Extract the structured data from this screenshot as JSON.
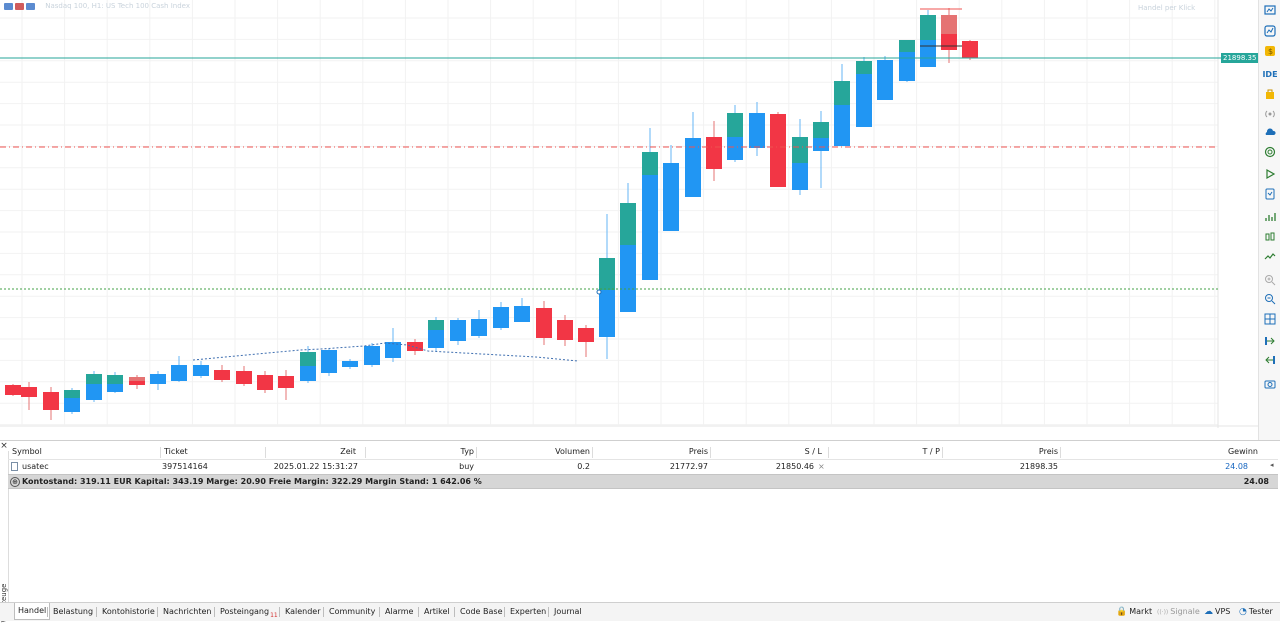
{
  "chart": {
    "header_text": "Nasdaq 100, H1: US Tech 100 Cash Index",
    "header_right": "Handel per Klick",
    "current_price_tag": "21898.35",
    "colors": {
      "bull_green": "#26a69a",
      "bull_blue": "#2196f3",
      "bear_red": "#f23645",
      "price_line": "#26a69a",
      "sl_line": "#ef5350",
      "entry_line": "#43a047"
    }
  },
  "right_toolbar": {
    "icons": [
      "market-watch-icon",
      "chart-icon",
      "coin-icon",
      "ide-icon",
      "bag-icon",
      "signal-icon",
      "cloud-icon",
      "globe-icon",
      "play-icon",
      "tester-icon",
      "algo-icon",
      "candles-icon",
      "line-icon",
      "zoom-in-icon",
      "zoom-out-icon",
      "grid-icon",
      "scroll-icon",
      "shift-icon",
      "screenshot-icon"
    ],
    "ide_label": "IDE"
  },
  "toolbox": {
    "close": "×",
    "side_label": "Werkzeuge",
    "headers": {
      "symbol": "Symbol",
      "ticket": "Ticket",
      "zeit": "Zeit",
      "typ": "Typ",
      "volumen": "Volumen",
      "preis": "Preis",
      "sl": "S / L",
      "tp": "T / P",
      "preis2": "Preis",
      "gewinn": "Gewinn"
    },
    "position": {
      "symbol": "usatec",
      "ticket": "397514164",
      "zeit": "2025.01.22 15:31:27",
      "typ": "buy",
      "volumen": "0.2",
      "preis": "21772.97",
      "sl": "21850.46",
      "sl_x": "×",
      "tp": "",
      "preis2": "21898.35",
      "gewinn": "24.08"
    },
    "summary": {
      "text": "Kontostand: 319.11 EUR  Kapital: 343.19  Marge: 20.90  Freie Margin: 322.29  Margin Stand: 1 642.06 %",
      "value": "24.08"
    }
  },
  "tabs": [
    {
      "label": "Handel",
      "active": true
    },
    {
      "label": "Belastung"
    },
    {
      "label": "Kontohistorie"
    },
    {
      "label": "Nachrichten"
    },
    {
      "label": "Posteingang",
      "badge": "11"
    },
    {
      "label": "Kalender"
    },
    {
      "label": "Community"
    },
    {
      "label": "Alarme"
    },
    {
      "label": "Artikel"
    },
    {
      "label": "Code Base"
    },
    {
      "label": "Experten"
    },
    {
      "label": "Journal"
    }
  ],
  "status": {
    "markt": "Markt",
    "signale": "Signale",
    "vps": "VPS",
    "tester": "Tester"
  }
}
